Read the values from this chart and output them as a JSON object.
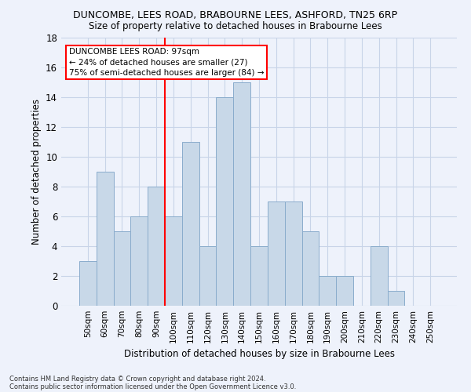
{
  "title1": "DUNCOMBE, LEES ROAD, BRABOURNE LEES, ASHFORD, TN25 6RP",
  "title2": "Size of property relative to detached houses in Brabourne Lees",
  "xlabel": "Distribution of detached houses by size in Brabourne Lees",
  "ylabel": "Number of detached properties",
  "categories": [
    "50sqm",
    "60sqm",
    "70sqm",
    "80sqm",
    "90sqm",
    "100sqm",
    "110sqm",
    "120sqm",
    "130sqm",
    "140sqm",
    "150sqm",
    "160sqm",
    "170sqm",
    "180sqm",
    "190sqm",
    "200sqm",
    "210sqm",
    "220sqm",
    "230sqm",
    "240sqm",
    "250sqm"
  ],
  "values": [
    3,
    9,
    5,
    6,
    8,
    6,
    11,
    4,
    14,
    15,
    4,
    7,
    7,
    5,
    2,
    2,
    0,
    4,
    1,
    0,
    0
  ],
  "bar_color": "#c8d8e8",
  "bar_edge_color": "#8aaccc",
  "bar_width": 1.0,
  "ylim": [
    0,
    18
  ],
  "yticks": [
    0,
    2,
    4,
    6,
    8,
    10,
    12,
    14,
    16,
    18
  ],
  "vline_x": 4.5,
  "vline_color": "red",
  "annotation_text": "DUNCOMBE LEES ROAD: 97sqm\n← 24% of detached houses are smaller (27)\n75% of semi-detached houses are larger (84) →",
  "annotation_box_color": "white",
  "annotation_box_edge_color": "red",
  "footnote1": "Contains HM Land Registry data © Crown copyright and database right 2024.",
  "footnote2": "Contains public sector information licensed under the Open Government Licence v3.0.",
  "grid_color": "#c8d4e8",
  "bg_color": "#eef2fb"
}
